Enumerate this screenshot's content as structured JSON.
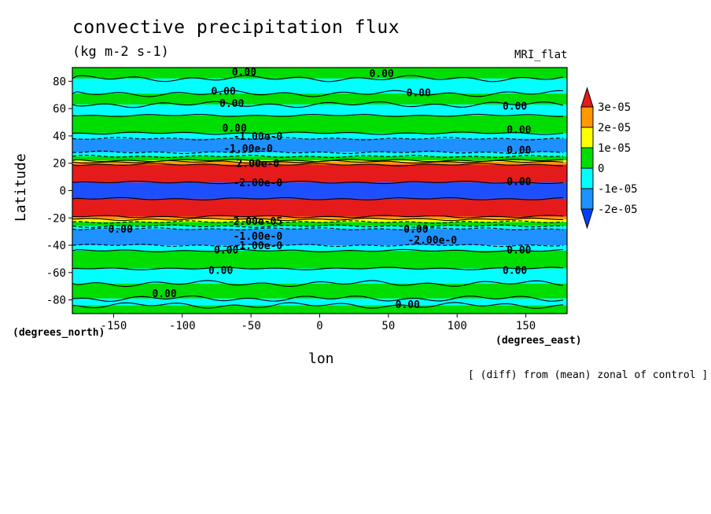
{
  "chart_data": {
    "type": "heatmap",
    "title": "convective precipitation flux",
    "units": "(kg m-2 s-1)",
    "model_label": "MRI_flat",
    "xlabel": "lon",
    "ylabel": "Latitude",
    "x_units": "(degrees_east)",
    "y_units": "(degrees_north)",
    "footnote": "[ (diff) from (mean) zonal of control ]",
    "xlim": [
      -180,
      180
    ],
    "ylim": [
      -90,
      90
    ],
    "x_ticks": [
      -150,
      -100,
      -50,
      0,
      50,
      100,
      150
    ],
    "y_ticks": [
      80,
      60,
      40,
      20,
      0,
      -20,
      -40,
      -60,
      -80
    ],
    "colorbar": {
      "levels": [
        "3e-05",
        "2e-05",
        "1e-05",
        "0",
        "-1e-05",
        "-2e-05"
      ],
      "colors": [
        "#e51a1a",
        "#ff9900",
        "#ffff00",
        "#00dd00",
        "#00ffff",
        "#1e90ff",
        "#0040ff"
      ]
    },
    "bands": [
      {
        "lat_top": 90,
        "lat_bottom": 82,
        "color": "#00dd00"
      },
      {
        "lat_top": 82,
        "lat_bottom": 71,
        "color": "#00ffff"
      },
      {
        "lat_top": 71,
        "lat_bottom": 63,
        "color": "#00dd00"
      },
      {
        "lat_top": 63,
        "lat_bottom": 55,
        "color": "#00ffff"
      },
      {
        "lat_top": 55,
        "lat_bottom": 42,
        "color": "#00dd00"
      },
      {
        "lat_top": 42,
        "lat_bottom": 38,
        "color": "#00ffff"
      },
      {
        "lat_top": 38,
        "lat_bottom": 28,
        "color": "#1e90ff"
      },
      {
        "lat_top": 28,
        "lat_bottom": 25,
        "color": "#00ffff"
      },
      {
        "lat_top": 25,
        "lat_bottom": 22,
        "color": "#00dd00"
      },
      {
        "lat_top": 22,
        "lat_bottom": 21,
        "color": "#ffff00"
      },
      {
        "lat_top": 21,
        "lat_bottom": 19,
        "color": "#ff9900"
      },
      {
        "lat_top": 19,
        "lat_bottom": 6,
        "color": "#e51a1a"
      },
      {
        "lat_top": 6,
        "lat_bottom": -6,
        "color": "#1e4fff"
      },
      {
        "lat_top": -6,
        "lat_bottom": -19,
        "color": "#e51a1a"
      },
      {
        "lat_top": -19,
        "lat_bottom": -21,
        "color": "#ff9900"
      },
      {
        "lat_top": -21,
        "lat_bottom": -23,
        "color": "#ffff00"
      },
      {
        "lat_top": -23,
        "lat_bottom": -26,
        "color": "#00dd00"
      },
      {
        "lat_top": -26,
        "lat_bottom": -28,
        "color": "#00ffff"
      },
      {
        "lat_top": -28,
        "lat_bottom": -40,
        "color": "#1e90ff"
      },
      {
        "lat_top": -40,
        "lat_bottom": -44,
        "color": "#00ffff"
      },
      {
        "lat_top": -44,
        "lat_bottom": -57,
        "color": "#00dd00"
      },
      {
        "lat_top": -57,
        "lat_bottom": -68,
        "color": "#00ffff"
      },
      {
        "lat_top": -68,
        "lat_bottom": -79,
        "color": "#00dd00"
      },
      {
        "lat_top": -79,
        "lat_bottom": -84,
        "color": "#00ffff"
      },
      {
        "lat_top": -84,
        "lat_bottom": -90,
        "color": "#00dd00"
      }
    ],
    "contour_labels": [
      {
        "text": "0.00",
        "lon": -55,
        "lat": 87
      },
      {
        "text": "0.00",
        "lon": 45,
        "lat": 86
      },
      {
        "text": "0.00",
        "lon": -70,
        "lat": 73
      },
      {
        "text": "0.00",
        "lon": 72,
        "lat": 72
      },
      {
        "text": "0.00",
        "lon": -64,
        "lat": 64
      },
      {
        "text": "0.00",
        "lon": 142,
        "lat": 62
      },
      {
        "text": "0.00",
        "lon": -62,
        "lat": 46
      },
      {
        "text": "0.00",
        "lon": 145,
        "lat": 45
      },
      {
        "text": "-1.00e-0",
        "lon": -45,
        "lat": 40
      },
      {
        "text": "-1.00e-0",
        "lon": -52,
        "lat": 31
      },
      {
        "text": "0.00",
        "lon": 145,
        "lat": 30
      },
      {
        "text": "2.00e-0",
        "lon": -45,
        "lat": 20
      },
      {
        "text": "0.00",
        "lon": 145,
        "lat": 7
      },
      {
        "text": "-2.00e-0",
        "lon": -45,
        "lat": 6
      },
      {
        "text": "2.00e-05",
        "lon": -45,
        "lat": -22
      },
      {
        "text": "0.00",
        "lon": -145,
        "lat": -28
      },
      {
        "text": "-1.00e-0",
        "lon": -45,
        "lat": -33
      },
      {
        "text": "0.00",
        "lon": 70,
        "lat": -28
      },
      {
        "text": "-2.00e-0",
        "lon": 82,
        "lat": -36
      },
      {
        "text": "-1.00e-0",
        "lon": -45,
        "lat": -40
      },
      {
        "text": "0.00",
        "lon": -68,
        "lat": -43
      },
      {
        "text": "0.00",
        "lon": 145,
        "lat": -43
      },
      {
        "text": "0.00",
        "lon": -72,
        "lat": -58
      },
      {
        "text": "0.00",
        "lon": 142,
        "lat": -58
      },
      {
        "text": "0.00",
        "lon": -113,
        "lat": -75
      },
      {
        "text": "0.00",
        "lon": 64,
        "lat": -83
      }
    ]
  }
}
